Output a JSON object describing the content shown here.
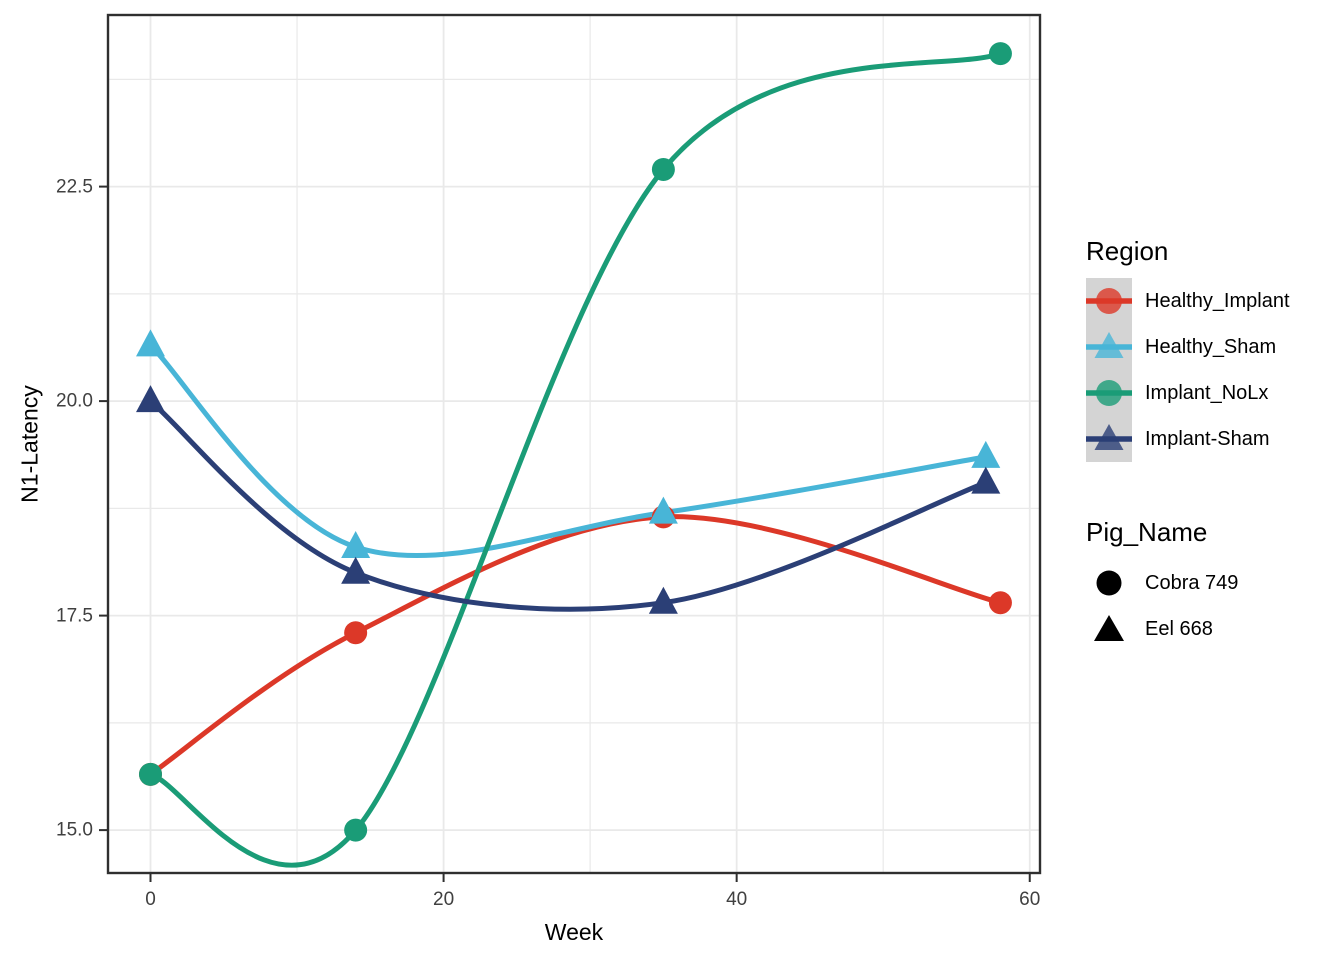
{
  "chart_data": {
    "type": "line",
    "title": "",
    "xlabel": "Week",
    "ylabel": "N1-Latency",
    "xlim": [
      -2.9,
      60.7
    ],
    "ylim": [
      14.5,
      24.5
    ],
    "x_ticks": [
      0,
      20,
      40,
      60
    ],
    "x_tick_labels": [
      "0",
      "20",
      "40",
      "60"
    ],
    "y_ticks": [
      22.5,
      20.0,
      17.5,
      15.0
    ],
    "y_tick_labels": [
      "22.5",
      "20.0",
      "17.5",
      "15.0"
    ],
    "x_minor_gridlines": [
      10,
      30,
      50
    ],
    "y_minor_gridlines": [
      16.25,
      18.75,
      21.25,
      23.75
    ],
    "grid": "major+minor",
    "legend_position": "right",
    "series": [
      {
        "name": "Healthy_Implant",
        "pig_name": "Cobra 749",
        "marker": "circle",
        "color": "#DC3828",
        "x": [
          0,
          14,
          35,
          58
        ],
        "y": [
          15.65,
          17.3,
          18.65,
          17.65
        ]
      },
      {
        "name": "Healthy_Sham",
        "pig_name": "Eel 668",
        "marker": "triangle",
        "color": "#48B5D7",
        "x": [
          0,
          14,
          35,
          57
        ],
        "y": [
          20.65,
          18.3,
          18.7,
          19.35
        ]
      },
      {
        "name": "Implant_NoLx",
        "pig_name": "Cobra 749",
        "marker": "circle",
        "color": "#1A9C77",
        "x": [
          0,
          14,
          35,
          58
        ],
        "y": [
          15.65,
          15.0,
          22.7,
          24.05
        ]
      },
      {
        "name": "Implant-Sham",
        "pig_name": "Eel 668",
        "marker": "triangle",
        "color": "#2B3F76",
        "x": [
          0,
          14,
          35,
          57
        ],
        "y": [
          20.0,
          18.0,
          17.65,
          19.05
        ]
      }
    ],
    "legend": {
      "region_title": "Region",
      "pig_title": "Pig_Name",
      "pig_items": [
        {
          "label": "Cobra 749",
          "marker": "circle"
        },
        {
          "label": "Eel 668",
          "marker": "triangle"
        }
      ]
    },
    "style_colors": {
      "grid": "#E9E9E9",
      "panel_border": "#2F2F2F",
      "tick_text": "#404040",
      "legend_key_background": "#D4D4D4",
      "pig_marker": "#000000"
    }
  }
}
